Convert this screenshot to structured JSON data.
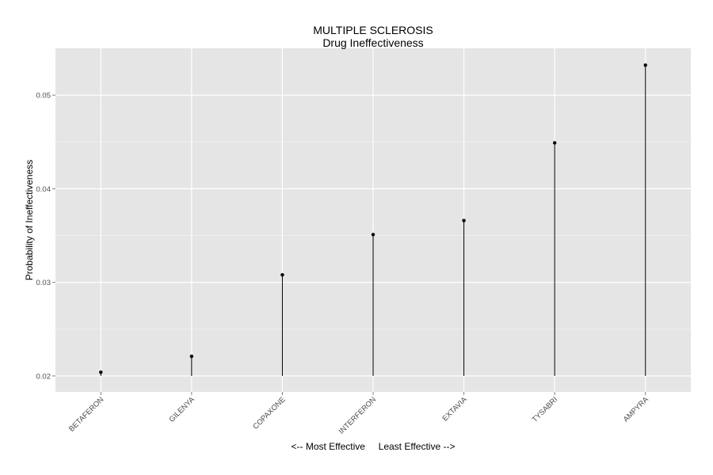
{
  "chart_data": {
    "type": "scatter",
    "title": "MULTIPLE SCLEROSIS",
    "subtitle": "Drug Ineffectiveness",
    "xlabel": "<-- Most Effective     Least Effective -->",
    "ylabel": "Probability of Ineffectiveness",
    "categories": [
      "BETAFERON",
      "GILENYA",
      "COPAXONE",
      "INTERFERON",
      "EXTAVIA",
      "TYSABRI",
      "AMPYRA"
    ],
    "values": [
      0.0204,
      0.0221,
      0.0308,
      0.0351,
      0.0366,
      0.0449,
      0.0532
    ],
    "ylim": [
      0.0183,
      0.055
    ],
    "y_ticks": [
      0.02,
      0.03,
      0.04,
      0.05
    ],
    "y_tick_labels": [
      "0.02",
      "0.03",
      "0.04",
      "0.05"
    ],
    "stem_baseline": 0.02,
    "grid": true,
    "colors": {
      "panel": "#e5e5e5",
      "grid_major": "#ffffff",
      "grid_minor": "#f2f2f2",
      "mark": "#000000"
    }
  }
}
